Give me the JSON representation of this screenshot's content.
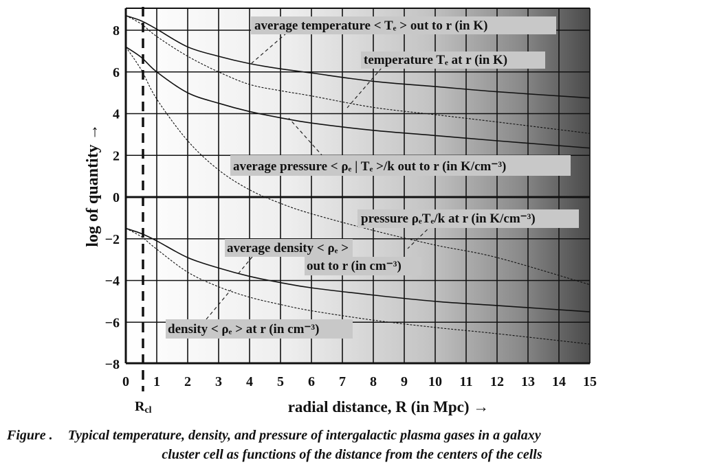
{
  "chart_data": {
    "type": "line",
    "title": "",
    "xlabel": "radial distance, R (in Mpc) →",
    "ylabel": "log of quantity →",
    "xlim": [
      0,
      15
    ],
    "ylim": [
      -8,
      9
    ],
    "grid": true,
    "x_ticks": [
      "0",
      "1",
      "2",
      "3",
      "4",
      "5",
      "6",
      "7",
      "8",
      "9",
      "10",
      "11",
      "12",
      "13",
      "14",
      "15"
    ],
    "y_ticks": [
      "8",
      "6",
      "4",
      "2",
      "0",
      "−2",
      "−4",
      "−6",
      "−8"
    ],
    "marker": {
      "label": "R",
      "label_sub": "cl",
      "x": 0.55,
      "style": "dashed vertical line"
    },
    "x": [
      0,
      0.5,
      1,
      2,
      3,
      4,
      5,
      6,
      8,
      10,
      12,
      15
    ],
    "series": [
      {
        "name": "average temperature < Tₑ > out to r (in K)",
        "style": "solid",
        "values": [
          8.7,
          8.45,
          8.05,
          7.2,
          6.75,
          6.4,
          6.15,
          5.95,
          5.55,
          5.3,
          5.05,
          4.75
        ]
      },
      {
        "name": "temperature Tₑ at r (in K)",
        "style": "dashed",
        "values": [
          8.7,
          8.3,
          7.7,
          6.75,
          6.0,
          5.4,
          5.1,
          4.85,
          4.3,
          3.95,
          3.6,
          3.05
        ]
      },
      {
        "name": "average pressure < ρₑ | Tₑ >/k out to r (in K/cm⁻³)",
        "style": "solid",
        "values": [
          7.2,
          6.7,
          6.0,
          5.0,
          4.5,
          4.1,
          3.8,
          3.55,
          3.2,
          2.95,
          2.7,
          2.35
        ]
      },
      {
        "name": "pressure ρₑTₑ/k at r (in K/cm⁻³)",
        "style": "dashed",
        "values": [
          7.2,
          6.1,
          4.7,
          2.7,
          1.3,
          0.35,
          -0.3,
          -0.8,
          -1.6,
          -2.3,
          -2.9,
          -4.2
        ]
      },
      {
        "name": "average density < ρₑ > out to r (in cm⁻³)",
        "style": "solid",
        "values": [
          -1.5,
          -1.75,
          -2.1,
          -2.9,
          -3.4,
          -3.8,
          -4.1,
          -4.35,
          -4.7,
          -5.0,
          -5.2,
          -5.5
        ]
      },
      {
        "name": "density < ρₑ > at r (in cm⁻³)",
        "style": "dashed",
        "values": [
          -1.5,
          -1.9,
          -2.5,
          -3.6,
          -4.3,
          -4.8,
          -5.15,
          -5.45,
          -5.9,
          -6.25,
          -6.55,
          -7.05
        ]
      }
    ],
    "annotations": {
      "avg_temp": "average temperature < Tₑ > out to r (in K)",
      "temp": "temperature Tₑ at r (in K)",
      "avg_pressure": "average pressure < ρₑ | Tₑ >/k out to r (in K/cm⁻³)",
      "pressure": "pressure ρₑTₑ/k at r (in K/cm⁻³)",
      "avg_density_line1": "average density < ρₑ >",
      "avg_density_line2": "out to r (in cm⁻³)",
      "density": "density < ρₑ > at r (in cm⁻³)"
    }
  },
  "caption": {
    "label": "Figure .",
    "line1": "Typical temperature, density, and pressure of intergalactic plasma gases in a galaxy",
    "line2": "cluster cell as functions of the distance from the centers of the cells"
  }
}
